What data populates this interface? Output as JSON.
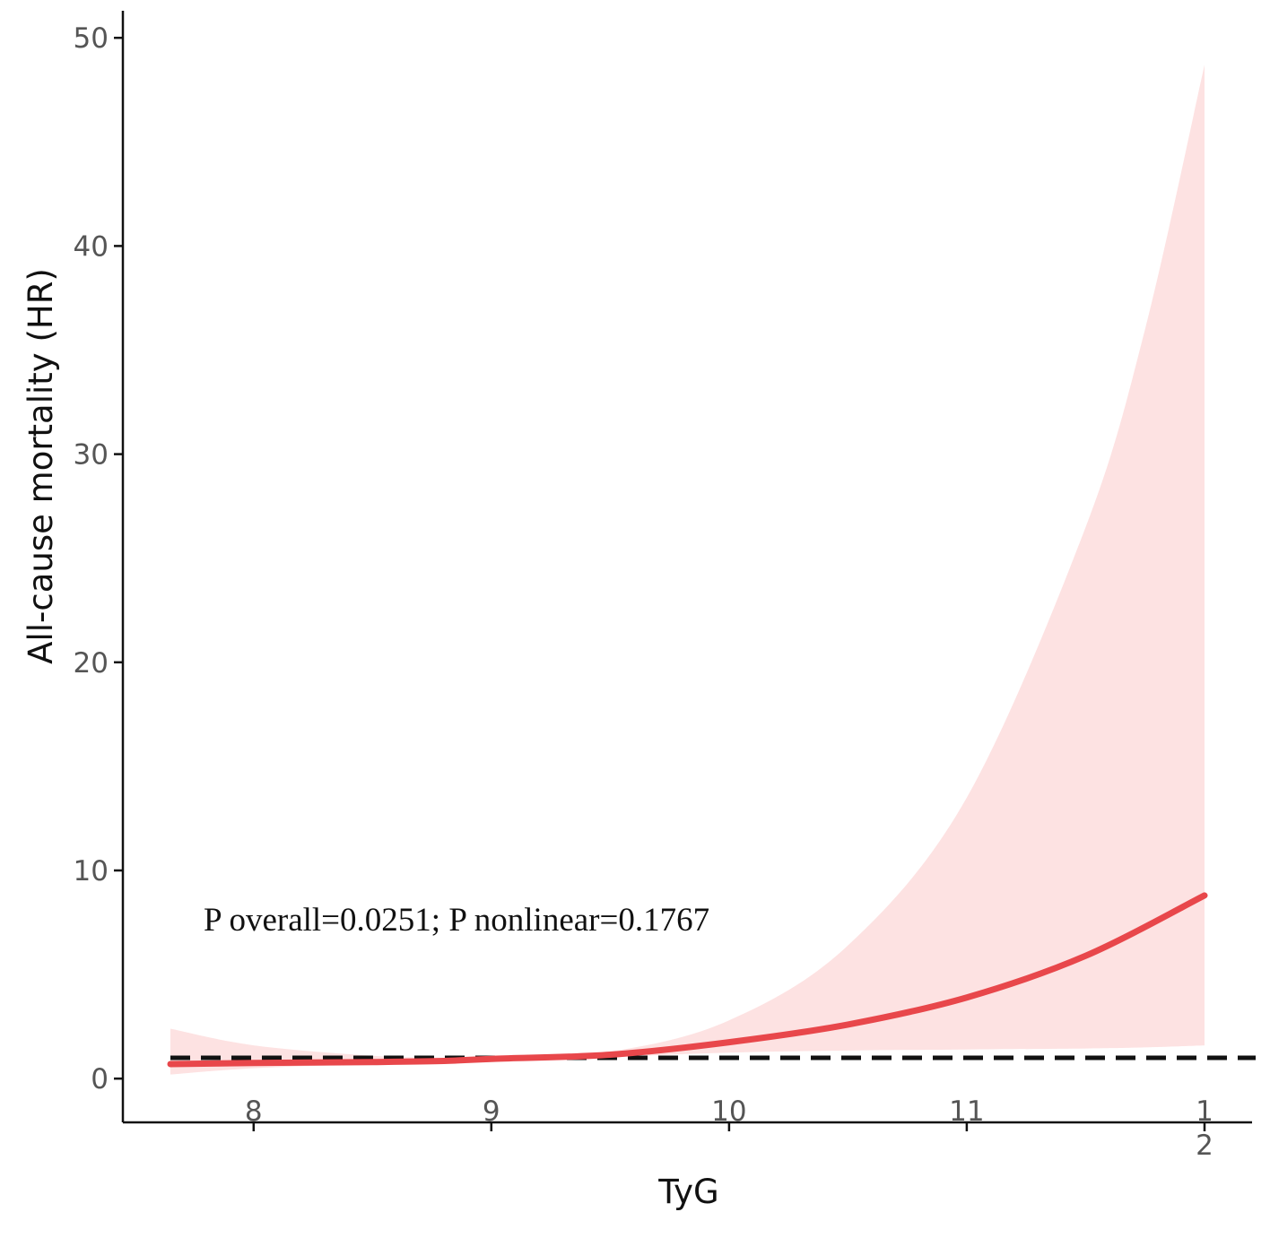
{
  "chart_data": {
    "type": "line",
    "title": "",
    "xlabel": "TyG",
    "ylabel": "All-cause mortality (HR)",
    "xlim": [
      7.45,
      12.2
    ],
    "ylim": [
      -2.1,
      51.3
    ],
    "x_ticks": [
      {
        "value": 8,
        "label": "8"
      },
      {
        "value": 9,
        "label": "9"
      },
      {
        "value": 10,
        "label": "10"
      },
      {
        "value": 11,
        "label": "11"
      },
      {
        "value": 12,
        "label": "1\n2"
      }
    ],
    "y_ticks": [
      {
        "value": 0,
        "label": "0"
      },
      {
        "value": 10,
        "label": "10"
      },
      {
        "value": 20,
        "label": "20"
      },
      {
        "value": 30,
        "label": "30"
      },
      {
        "value": 40,
        "label": "40"
      },
      {
        "value": 50,
        "label": "50"
      }
    ],
    "grid": false,
    "legend": "none",
    "reference_line": {
      "y": 1,
      "style": "dashed",
      "color": "#111111"
    },
    "annotation": "P overall=0.0251; P nonlinear=0.1767",
    "series": [
      {
        "color": "#e8474b",
        "x": [
          7.65,
          8.0,
          8.5,
          8.8,
          9.0,
          9.5,
          10.0,
          10.5,
          11.0,
          11.5,
          12.0
        ],
        "values": [
          0.7,
          0.75,
          0.8,
          0.85,
          0.95,
          1.15,
          1.75,
          2.6,
          3.9,
          5.9,
          8.8
        ]
      }
    ],
    "confidence_band": {
      "color": "#fde2e2",
      "x": [
        7.65,
        8.0,
        8.5,
        8.8,
        9.0,
        9.5,
        10.0,
        10.5,
        11.0,
        11.5,
        11.75,
        12.0
      ],
      "lower": [
        0.2,
        0.5,
        0.7,
        0.8,
        0.9,
        1.05,
        1.25,
        1.35,
        1.4,
        1.45,
        1.5,
        1.6
      ],
      "upper": [
        2.4,
        1.6,
        1.1,
        1.0,
        1.0,
        1.3,
        2.8,
        6.4,
        13.5,
        26.5,
        36.0,
        48.7
      ]
    }
  }
}
